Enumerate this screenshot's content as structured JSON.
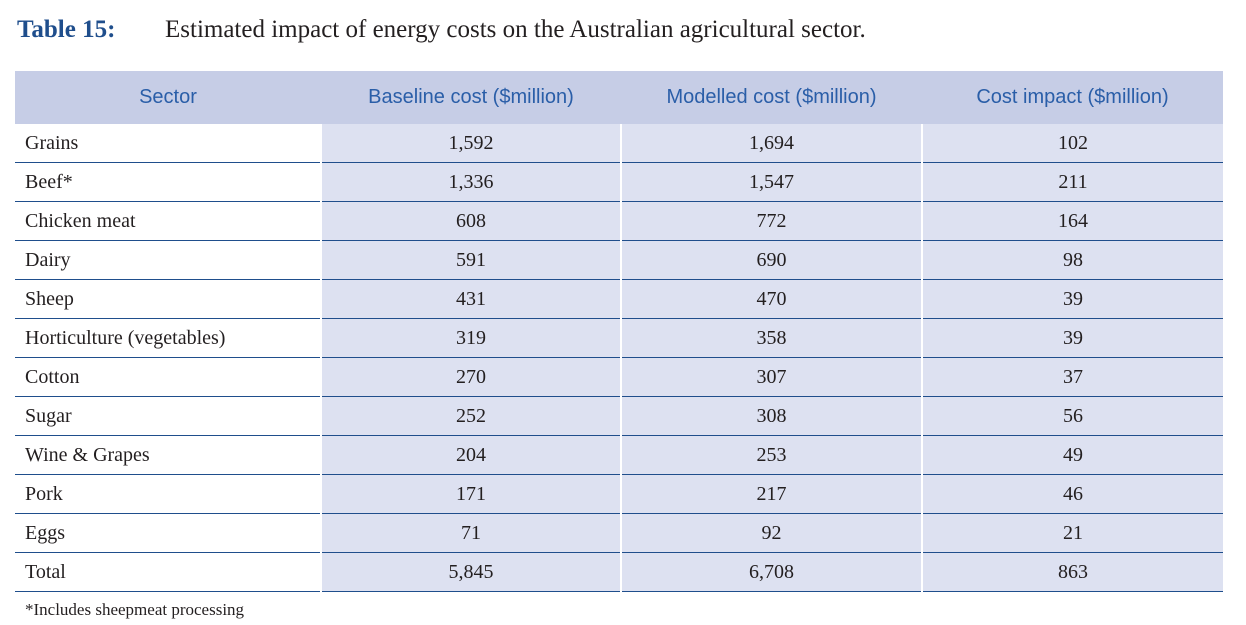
{
  "title": {
    "label": "Table 15:",
    "text": "Estimated impact of energy costs on the Australian agricultural sector."
  },
  "table": {
    "headers": [
      "Sector",
      "Baseline cost ($million)",
      "Modelled cost ($million)",
      "Cost impact ($million)"
    ],
    "rows": [
      [
        "Grains",
        "1,592",
        "1,694",
        "102"
      ],
      [
        "Beef*",
        "1,336",
        "1,547",
        "211"
      ],
      [
        "Chicken meat",
        "608",
        "772",
        "164"
      ],
      [
        "Dairy",
        "591",
        "690",
        "98"
      ],
      [
        "Sheep",
        "431",
        "470",
        "39"
      ],
      [
        "Horticulture (vegetables)",
        "319",
        "358",
        "39"
      ],
      [
        "Cotton",
        "270",
        "307",
        "37"
      ],
      [
        "Sugar",
        "252",
        "308",
        "56"
      ],
      [
        "Wine & Grapes",
        "204",
        "253",
        "49"
      ],
      [
        "Pork",
        "171",
        "217",
        "46"
      ],
      [
        "Eggs",
        "71",
        "92",
        "21"
      ],
      [
        "Total",
        "5,845",
        "6,708",
        "863"
      ]
    ]
  },
  "footnote": "*Includes sheepmeat processing",
  "colors": {
    "header_bg": "#c6cde6",
    "header_text": "#2a5ea8",
    "cell_bg": "#dde1f1",
    "rule": "#1f4e8c",
    "title_label": "#1f4e8c"
  }
}
